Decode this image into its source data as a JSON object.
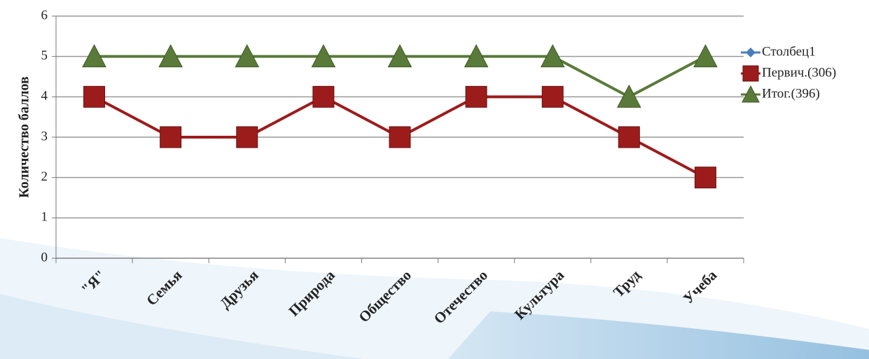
{
  "chart_data": {
    "type": "line",
    "y_label": "Количество баллов",
    "categories": [
      "\"Я\"",
      "Семья",
      "Друзья",
      "Природа",
      "Общество",
      "Отечество",
      "Культура",
      "Труд",
      "Учеба"
    ],
    "series": [
      {
        "name": "Столбец1",
        "color": "#4a7ebb",
        "marker": "diamond",
        "values": [
          null,
          null,
          null,
          null,
          null,
          null,
          null,
          null,
          null
        ]
      },
      {
        "name": "Первич.(306)",
        "color": "#9c1c1c",
        "marker": "square",
        "values": [
          4,
          3,
          3,
          4,
          3,
          4,
          4,
          3,
          2
        ]
      },
      {
        "name": "Итог.(396)",
        "color": "#5a7a3a",
        "marker": "triangle",
        "values": [
          5,
          5,
          5,
          5,
          5,
          5,
          5,
          4,
          5
        ]
      }
    ],
    "ylim": [
      0,
      6
    ],
    "yticks": [
      0,
      1,
      2,
      3,
      4,
      5,
      6
    ],
    "grid": true,
    "legend": "right"
  }
}
